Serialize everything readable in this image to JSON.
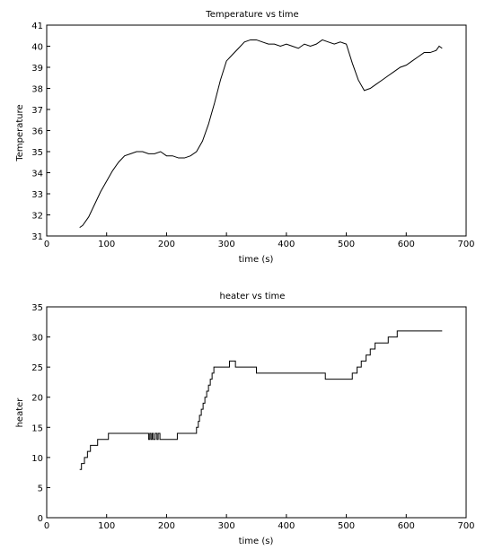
{
  "chart_data": [
    {
      "type": "line",
      "title": "Temperature vs time",
      "xlabel": "time (s)",
      "ylabel": "Temperature",
      "xlim": [
        0,
        700
      ],
      "ylim": [
        31,
        41
      ],
      "xticks": [
        0,
        100,
        200,
        300,
        400,
        500,
        600,
        700
      ],
      "yticks": [
        31,
        32,
        33,
        34,
        35,
        36,
        37,
        38,
        39,
        40,
        41
      ],
      "grid": false,
      "series": [
        {
          "x": [
            55,
            60,
            70,
            80,
            90,
            100,
            110,
            120,
            130,
            140,
            150,
            160,
            170,
            180,
            190,
            200,
            210,
            220,
            230,
            240,
            250,
            260,
            270,
            280,
            290,
            300,
            310,
            320,
            330,
            340,
            350,
            360,
            370,
            380,
            390,
            400,
            410,
            420,
            430,
            440,
            450,
            460,
            470,
            480,
            490,
            500,
            510,
            520,
            530,
            540,
            550,
            560,
            570,
            580,
            590,
            600,
            610,
            620,
            630,
            640,
            650,
            655,
            660
          ],
          "values": [
            31.4,
            31.5,
            31.9,
            32.5,
            33.1,
            33.6,
            34.1,
            34.5,
            34.8,
            34.9,
            35.0,
            35.0,
            34.9,
            34.9,
            35.0,
            34.8,
            34.8,
            34.7,
            34.7,
            34.8,
            35.0,
            35.5,
            36.3,
            37.3,
            38.4,
            39.3,
            39.6,
            39.9,
            40.2,
            40.3,
            40.3,
            40.2,
            40.1,
            40.1,
            40.0,
            40.1,
            40.0,
            39.9,
            40.1,
            40.0,
            40.1,
            40.3,
            40.2,
            40.1,
            40.2,
            40.1,
            39.2,
            38.4,
            37.9,
            38.0,
            38.2,
            38.4,
            38.6,
            38.8,
            39.0,
            39.1,
            39.3,
            39.5,
            39.7,
            39.7,
            39.8,
            40.0,
            39.9
          ]
        }
      ]
    },
    {
      "type": "line",
      "title": "heater vs time",
      "xlabel": "time (s)",
      "ylabel": "heater",
      "xlim": [
        0,
        700
      ],
      "ylim": [
        0,
        35
      ],
      "xticks": [
        0,
        100,
        200,
        300,
        400,
        500,
        600,
        700
      ],
      "yticks": [
        0,
        5,
        10,
        15,
        20,
        25,
        30,
        35
      ],
      "grid": false,
      "series": [
        {
          "step": true,
          "x": [
            55,
            58,
            63,
            68,
            73,
            78,
            85,
            90,
            103,
            170,
            172,
            174,
            176,
            178,
            181,
            184,
            186,
            189,
            218,
            250,
            253,
            255,
            258,
            261,
            264,
            267,
            270,
            273,
            276,
            279,
            282,
            286,
            290,
            305,
            315,
            350,
            465,
            510,
            518,
            525,
            533,
            540,
            548,
            557,
            570,
            585,
            605,
            660
          ],
          "values": [
            8,
            9,
            10,
            11,
            12,
            12,
            13,
            13,
            14,
            13,
            14,
            13,
            14,
            13,
            14,
            13,
            14,
            13,
            14,
            15,
            16,
            17,
            18,
            19,
            20,
            21,
            22,
            23,
            24,
            25,
            25,
            25,
            25,
            26,
            25,
            24,
            23,
            24,
            25,
            26,
            27,
            28,
            29,
            29,
            30,
            31,
            31,
            31
          ]
        }
      ]
    }
  ]
}
